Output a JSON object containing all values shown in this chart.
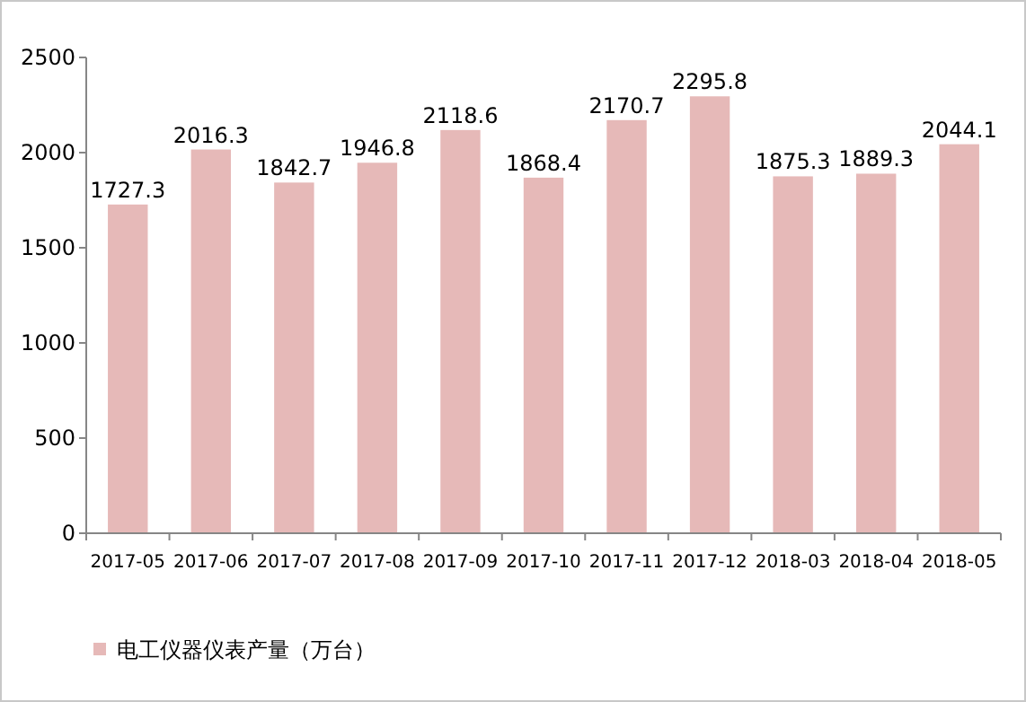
{
  "chart_data": {
    "type": "bar",
    "categories": [
      "2017-05",
      "2017-06",
      "2017-07",
      "2017-08",
      "2017-09",
      "2017-10",
      "2017-11",
      "2017-12",
      "2018-03",
      "2018-04",
      "2018-05"
    ],
    "series": [
      {
        "name": "电工仪器仪表产量（万台）",
        "color": "#e6b9b8",
        "values": [
          1727.3,
          2016.3,
          1842.7,
          1946.8,
          2118.6,
          1868.4,
          2170.7,
          2295.8,
          1875.3,
          1889.3,
          2044.1
        ]
      }
    ],
    "ylim": [
      0,
      2500
    ],
    "yticks": [
      0,
      500,
      1000,
      1500,
      2000,
      2500
    ],
    "data_labels": true,
    "legend": "bottom left",
    "grid": false
  }
}
